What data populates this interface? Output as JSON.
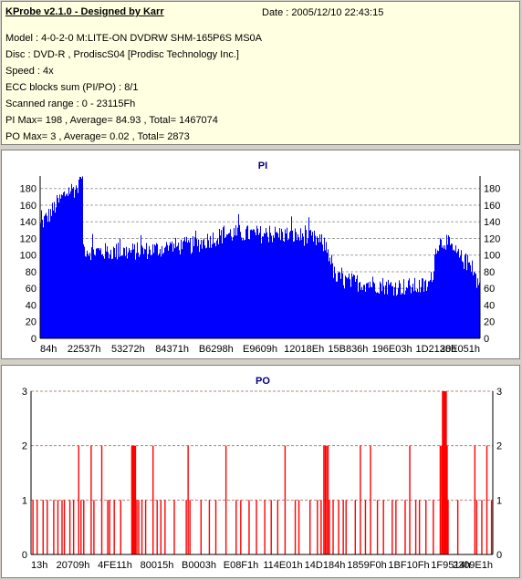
{
  "header": {
    "title": "KProbe v2.1.0 - Designed by Karr",
    "date": "Date : 2005/12/10 22:43:15",
    "lines": [
      "Model : 4-0-2-0 M:LITE-ON DVDRW SHM-165P6S MS0A",
      "Disc : DVD-R , ProdiscS04   [Prodisc Technology Inc.]",
      "Speed : 4x",
      "ECC blocks sum (PI/PO) : 8/1",
      "Scanned range : 0 - 23115Fh",
      "PI Max= 198 , Average= 84.93 , Total= 1467074",
      "PO Max= 3 , Average= 0.02 , Total= 2873"
    ]
  },
  "chart_data": [
    {
      "type": "area",
      "title": "PI",
      "color": "#0000ff",
      "ylim": [
        0,
        195
      ],
      "yticks": [
        0,
        20,
        40,
        60,
        80,
        100,
        120,
        140,
        160,
        180
      ],
      "xticks": [
        "84h",
        "22537h",
        "53272h",
        "84371h",
        "B6298h",
        "E9609h",
        "12018Eh",
        "15B836h",
        "196E03h",
        "1D2138h",
        "20E051h"
      ],
      "grid": true,
      "profile": [
        [
          0,
          135
        ],
        [
          0.8,
          142
        ],
        [
          2,
          148
        ],
        [
          3.5,
          160
        ],
        [
          5,
          170
        ],
        [
          6.5,
          178
        ],
        [
          8,
          180
        ],
        [
          9.3,
          183
        ],
        [
          9.5,
          110
        ],
        [
          11,
          105
        ],
        [
          15,
          104
        ],
        [
          20,
          104
        ],
        [
          25,
          106
        ],
        [
          30,
          110
        ],
        [
          35,
          112
        ],
        [
          38,
          118
        ],
        [
          42,
          125
        ],
        [
          45,
          126
        ],
        [
          50,
          125
        ],
        [
          55,
          125
        ],
        [
          60,
          122
        ],
        [
          63,
          118
        ],
        [
          65,
          110
        ],
        [
          66,
          95
        ],
        [
          67,
          72
        ],
        [
          70,
          68
        ],
        [
          75,
          66
        ],
        [
          80,
          62
        ],
        [
          85,
          62
        ],
        [
          88,
          63
        ],
        [
          89,
          72
        ],
        [
          90,
          112
        ],
        [
          92,
          118
        ],
        [
          94,
          104
        ],
        [
          96,
          94
        ],
        [
          98,
          88
        ],
        [
          99,
          72
        ],
        [
          100,
          62
        ]
      ],
      "max": 198,
      "average": 84.93
    },
    {
      "type": "bar",
      "title": "PO",
      "color": "#ff0000",
      "ylim": [
        0,
        3
      ],
      "yticks": [
        0,
        1,
        2,
        3
      ],
      "xticks": [
        "13h",
        "20709h",
        "4FE11h",
        "80015h",
        "B0003h",
        "E08F1h",
        "114E01h",
        "14D184h",
        "1859F0h",
        "1BF10Fh",
        "1F9514h",
        "2309E1h"
      ],
      "grid": true,
      "spikes": [
        [
          0.4,
          1
        ],
        [
          1.3,
          1
        ],
        [
          2.6,
          1
        ],
        [
          3.5,
          1
        ],
        [
          4.9,
          1
        ],
        [
          5.8,
          1
        ],
        [
          6.7,
          1
        ],
        [
          7.2,
          1
        ],
        [
          8.4,
          1
        ],
        [
          9.2,
          1
        ],
        [
          10.3,
          2
        ],
        [
          10.8,
          1
        ],
        [
          11.4,
          1
        ],
        [
          13.0,
          2
        ],
        [
          13.6,
          1
        ],
        [
          15.3,
          2
        ],
        [
          16.6,
          1
        ],
        [
          17.0,
          1
        ],
        [
          18.0,
          1
        ],
        [
          19.4,
          1
        ],
        [
          21.8,
          2
        ],
        [
          22.0,
          2
        ],
        [
          22.2,
          2
        ],
        [
          22.4,
          2
        ],
        [
          22.6,
          2
        ],
        [
          22.9,
          1
        ],
        [
          23.3,
          1
        ],
        [
          24.0,
          1
        ],
        [
          24.8,
          1
        ],
        [
          26.4,
          2
        ],
        [
          27.3,
          1
        ],
        [
          28.1,
          1
        ],
        [
          29.0,
          1
        ],
        [
          31.0,
          1
        ],
        [
          33.6,
          1
        ],
        [
          34.0,
          2
        ],
        [
          34.4,
          1
        ],
        [
          36.8,
          1
        ],
        [
          38.6,
          1
        ],
        [
          40.0,
          1
        ],
        [
          42.2,
          2
        ],
        [
          44.4,
          1
        ],
        [
          45.4,
          1
        ],
        [
          47.2,
          1
        ],
        [
          48.8,
          1
        ],
        [
          50.6,
          1
        ],
        [
          52.0,
          1
        ],
        [
          53.4,
          1
        ],
        [
          55.0,
          2
        ],
        [
          57.2,
          1
        ],
        [
          58.0,
          1
        ],
        [
          60.4,
          1
        ],
        [
          62.0,
          1
        ],
        [
          62.8,
          1
        ],
        [
          63.4,
          2
        ],
        [
          63.7,
          2
        ],
        [
          64.0,
          2
        ],
        [
          64.3,
          2
        ],
        [
          64.6,
          1
        ],
        [
          65.4,
          1
        ],
        [
          66.6,
          1
        ],
        [
          67.6,
          1
        ],
        [
          68.2,
          1
        ],
        [
          70.2,
          1
        ],
        [
          71.3,
          2
        ],
        [
          72.4,
          1
        ],
        [
          73.5,
          2
        ],
        [
          75.0,
          1
        ],
        [
          76.3,
          1
        ],
        [
          78.2,
          1
        ],
        [
          79.0,
          1
        ],
        [
          81.0,
          1
        ],
        [
          82.0,
          2
        ],
        [
          83.3,
          1
        ],
        [
          84.1,
          1
        ],
        [
          85.5,
          1
        ],
        [
          87.1,
          1
        ],
        [
          88.6,
          2
        ],
        [
          88.9,
          2
        ],
        [
          89.1,
          3
        ],
        [
          89.3,
          3
        ],
        [
          89.5,
          3
        ],
        [
          89.7,
          3
        ],
        [
          89.9,
          3
        ],
        [
          90.1,
          2
        ],
        [
          90.3,
          1
        ],
        [
          92.4,
          1
        ],
        [
          96.1,
          2
        ],
        [
          96.5,
          1
        ],
        [
          97.6,
          1
        ],
        [
          98.7,
          2
        ],
        [
          99.7,
          1
        ]
      ],
      "max": 3,
      "average": 0.02
    }
  ]
}
